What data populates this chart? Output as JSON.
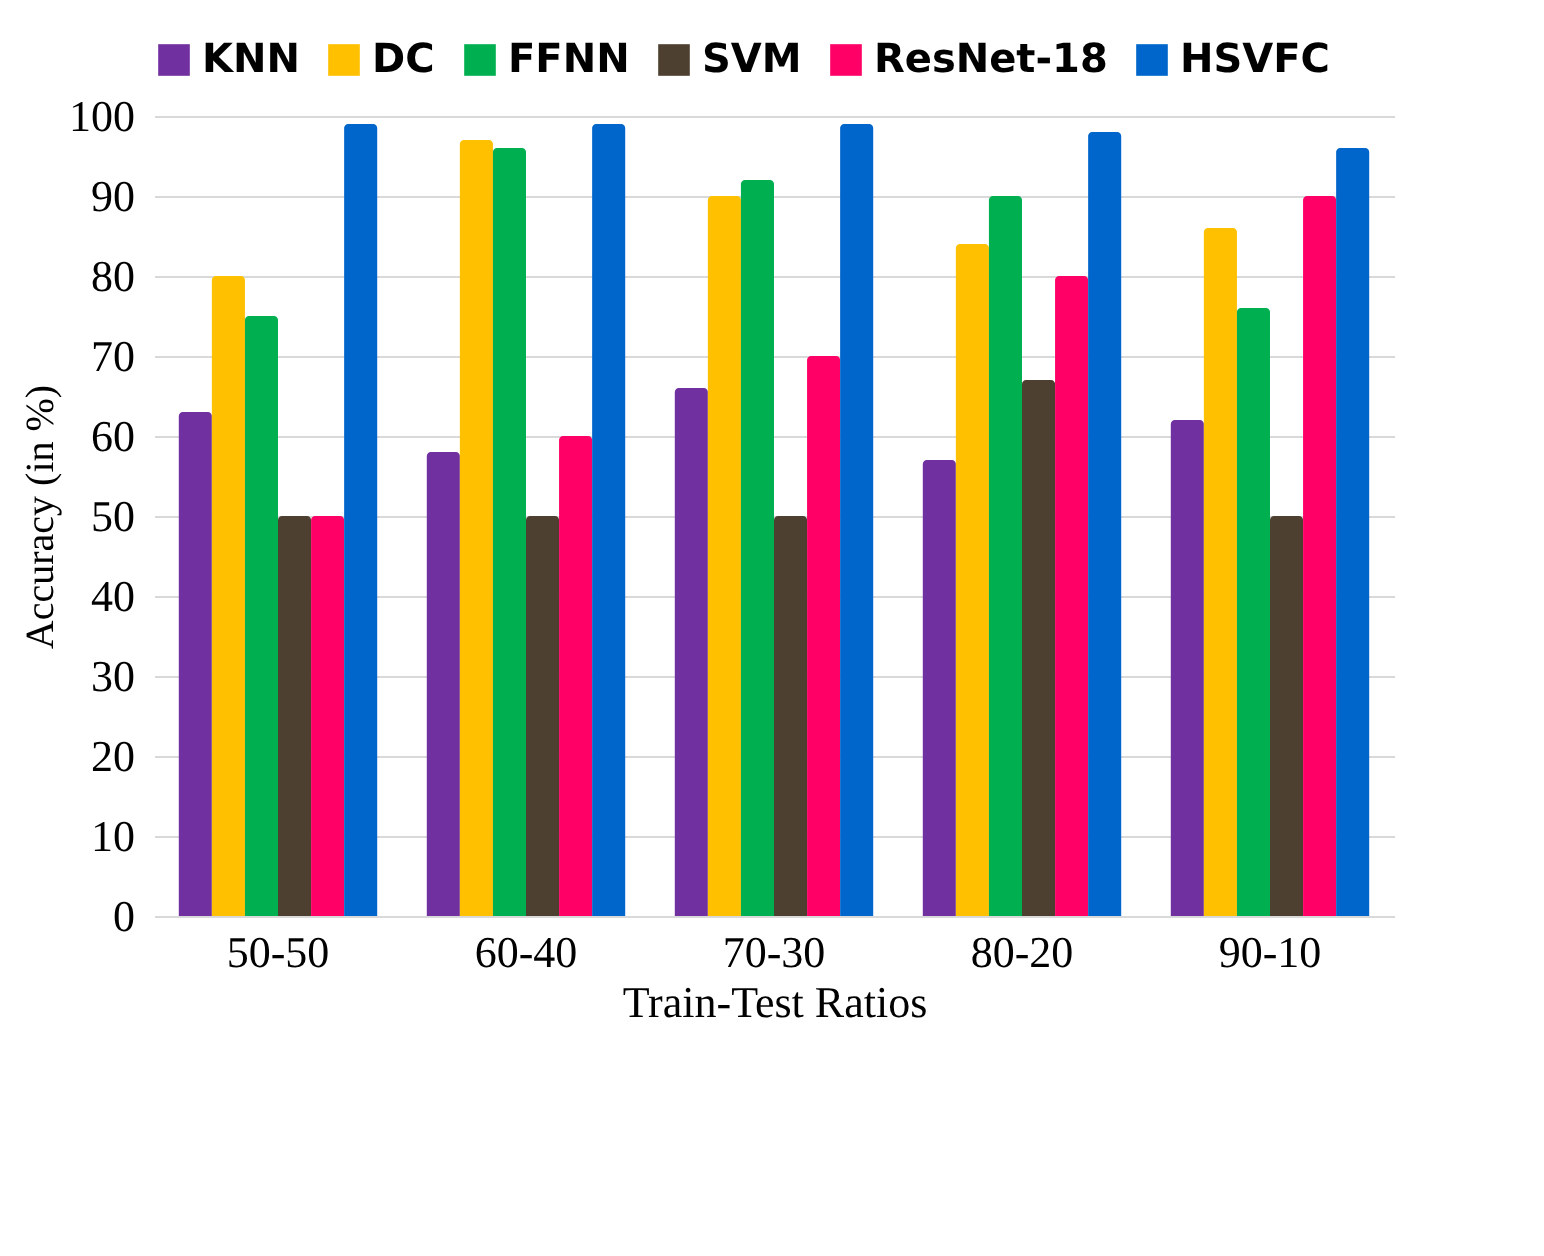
{
  "chart_data": {
    "type": "bar",
    "xlabel": "Train-Test Ratios",
    "ylabel": "Accuracy  (in %)",
    "categories": [
      "50-50",
      "60-40",
      "70-30",
      "80-20",
      "90-10"
    ],
    "series": [
      {
        "name": "KNN",
        "color": "#7030a0",
        "values": [
          63,
          58,
          66,
          57,
          62
        ]
      },
      {
        "name": "DC",
        "color": "#ffc000",
        "values": [
          80,
          97,
          90,
          84,
          86
        ]
      },
      {
        "name": "FFNN",
        "color": "#00b050",
        "values": [
          75,
          96,
          92,
          90,
          76
        ]
      },
      {
        "name": "SVM",
        "color": "#4d4030",
        "values": [
          50,
          50,
          50,
          67,
          50
        ]
      },
      {
        "name": "ResNet-18",
        "color": "#ff0066",
        "values": [
          50,
          60,
          70,
          80,
          90
        ]
      },
      {
        "name": "HSVFC",
        "color": "#0066cc",
        "values": [
          99,
          99,
          99,
          98,
          96
        ]
      }
    ],
    "ylim": [
      0,
      100
    ],
    "yticks": [
      0,
      10,
      20,
      30,
      40,
      50,
      60,
      70,
      80,
      90,
      100
    ],
    "grid": "y",
    "legend": "top"
  }
}
